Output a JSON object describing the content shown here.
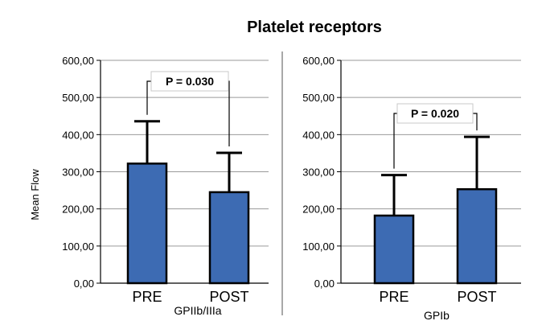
{
  "title": "Platelet receptors",
  "ylabel": "Mean Flow",
  "colors": {
    "bar": "#3d6bb3",
    "bar_edge": "#000000",
    "grid": "#9a9a9a",
    "divider": "#8c8c8c"
  },
  "chart_data": [
    {
      "type": "bar",
      "xlabel": "GPIIb/IIIa",
      "ylabel": "Mean Flow",
      "ylim": [
        0,
        600
      ],
      "yticks": [
        "0,00",
        "100,00",
        "200,00",
        "300,00",
        "400,00",
        "500,00",
        "600,00"
      ],
      "categories": [
        "PRE",
        "POST"
      ],
      "values": [
        322,
        245
      ],
      "error_upper": [
        436,
        351
      ],
      "annotation": "P = 0.030",
      "grid": true
    },
    {
      "type": "bar",
      "xlabel": "GPIb",
      "ylabel": "",
      "ylim": [
        0,
        600
      ],
      "yticks": [
        "0,00",
        "100,00",
        "200,00",
        "300,00",
        "400,00",
        "500,00",
        "600,00"
      ],
      "categories": [
        "PRE",
        "POST"
      ],
      "values": [
        182,
        253
      ],
      "error_upper": [
        291,
        394
      ],
      "annotation": "P = 0.020",
      "grid": true
    }
  ]
}
